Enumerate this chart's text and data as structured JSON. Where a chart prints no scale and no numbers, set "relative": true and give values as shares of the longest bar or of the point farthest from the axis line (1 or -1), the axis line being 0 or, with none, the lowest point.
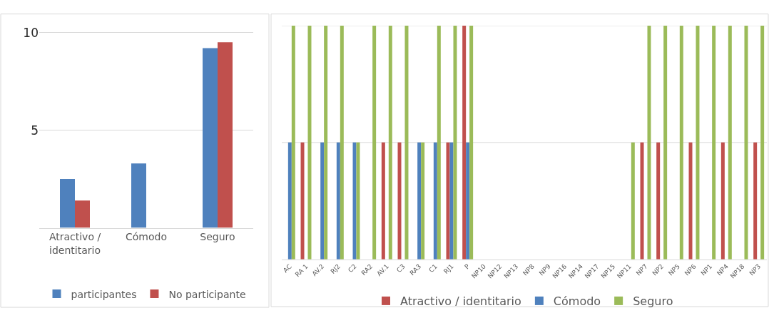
{
  "chart_data": [
    {
      "type": "bar",
      "categories": [
        "Atractivo / identitario",
        "Cómodo",
        "Seguro"
      ],
      "series": [
        {
          "name": "participantes",
          "color": "#4f81bd",
          "values": [
            2.5,
            3.3,
            9.2
          ]
        },
        {
          "name": "No participante",
          "color": "#c0504d",
          "values": [
            1.4,
            0,
            9.5
          ]
        }
      ],
      "ylim": [
        0,
        10
      ],
      "yticks": [
        5,
        10
      ],
      "grid": "y",
      "legend": "bottom"
    },
    {
      "type": "bar",
      "categories": [
        "AC",
        "RA 1",
        "AV.2",
        "RJ2",
        "C2",
        "RA2",
        "AV.1",
        "C3",
        "RA3",
        "C1",
        "RJ1",
        "P",
        "NP10",
        "NP12",
        "NP13",
        "NP8",
        "NP9",
        "NP16",
        "NP14",
        "NP17",
        "NP15",
        "NP11",
        "NP7",
        "NP2",
        "NP5",
        "NP6",
        "NP1",
        "NP4",
        "NP18",
        "NP3"
      ],
      "series": [
        {
          "name": "Atractivo / identitario",
          "color": "#c0504d",
          "values": [
            0,
            0.5,
            0,
            0,
            0,
            0,
            0.5,
            0.5,
            0,
            0,
            0.5,
            1,
            0,
            0,
            0,
            0,
            0,
            0,
            0,
            0,
            0,
            0,
            0.5,
            0.5,
            0,
            0.5,
            0,
            0.5,
            0,
            0.5
          ]
        },
        {
          "name": "Cómodo",
          "color": "#4f81bd",
          "values": [
            0.5,
            0,
            0.5,
            0.5,
            0.5,
            0,
            0,
            0,
            0.5,
            0.5,
            0.5,
            0.5,
            0,
            0,
            0,
            0,
            0,
            0,
            0,
            0,
            0,
            0,
            0,
            0,
            0,
            0,
            0,
            0,
            0,
            0
          ]
        },
        {
          "name": "Seguro",
          "color": "#9bbb59",
          "values": [
            1,
            1,
            1,
            1,
            0.5,
            1,
            1,
            1,
            0.5,
            1,
            1,
            1,
            0,
            0,
            0,
            0,
            0,
            0,
            0,
            0,
            0,
            0.5,
            1,
            1,
            1,
            1,
            1,
            1,
            1,
            1
          ]
        }
      ],
      "relative": true,
      "legend": "bottom",
      "ref_lines": [
        {
          "axis": "y",
          "value": 0.5,
          "color": "#d9d9d9"
        },
        {
          "axis": "y",
          "value": 1,
          "color": "#d9d9d9"
        }
      ]
    }
  ]
}
